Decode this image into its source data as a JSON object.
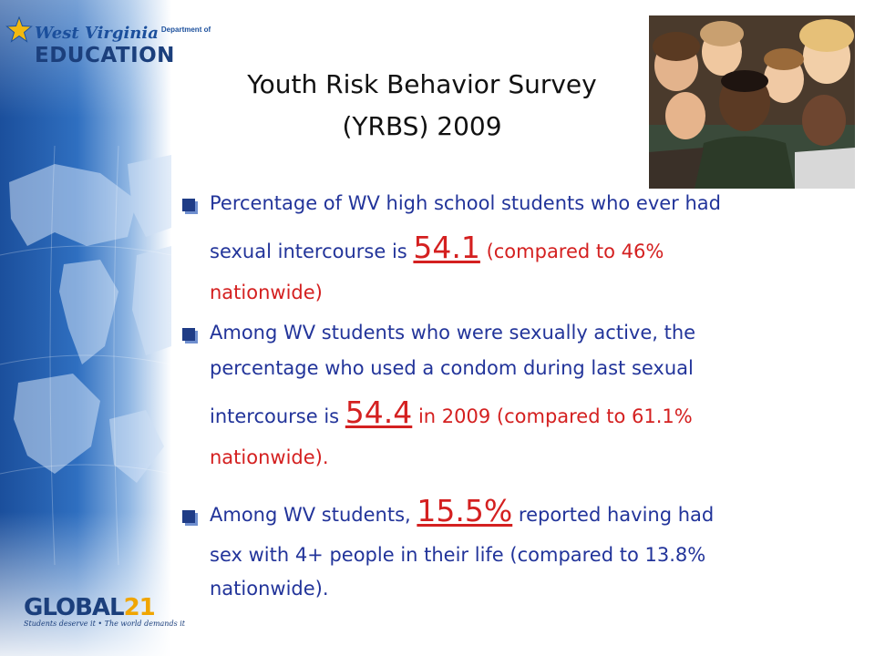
{
  "branding": {
    "wv_logo": {
      "line1": "West Virginia",
      "dept": "Department of",
      "line2": "EDUCATION"
    },
    "global21": {
      "word_main": "GLOBAL",
      "word_num": "21",
      "tagline": "Students deserve it • The world demands it"
    }
  },
  "title": {
    "line1": "Youth Risk Behavior Survey",
    "line2": "(YRBS) 2009"
  },
  "bullets": [
    {
      "line1": "Percentage  of  WV high school students who ever had",
      "line2_pre": "sexual intercourse  is ",
      "line2_value": "54.1",
      "line2_post": " (compared to 46%",
      "line3": "nationwide)"
    },
    {
      "line1": "Among WV students who were sexually active, the",
      "line2": "percentage who used a condom during last sexual",
      "line3_pre": "intercourse is ",
      "line3_value": "54.4",
      "line3_post": " in 2009 (compared to 61.1%",
      "line4": "nationwide)."
    },
    {
      "line1_pre": " Among WV students, ",
      "line1_value": "15.5%",
      "line1_post": " reported having had",
      "line2": "sex with 4+ people in their life (compared to 13.8%",
      "line3": "nationwide)."
    }
  ],
  "icons": [
    "star-icon",
    "world-map",
    "bullet-checkbox-icon"
  ],
  "colors": {
    "bullet_text": "#22349a",
    "highlight": "#d42020",
    "band": "#1b4f9c"
  }
}
